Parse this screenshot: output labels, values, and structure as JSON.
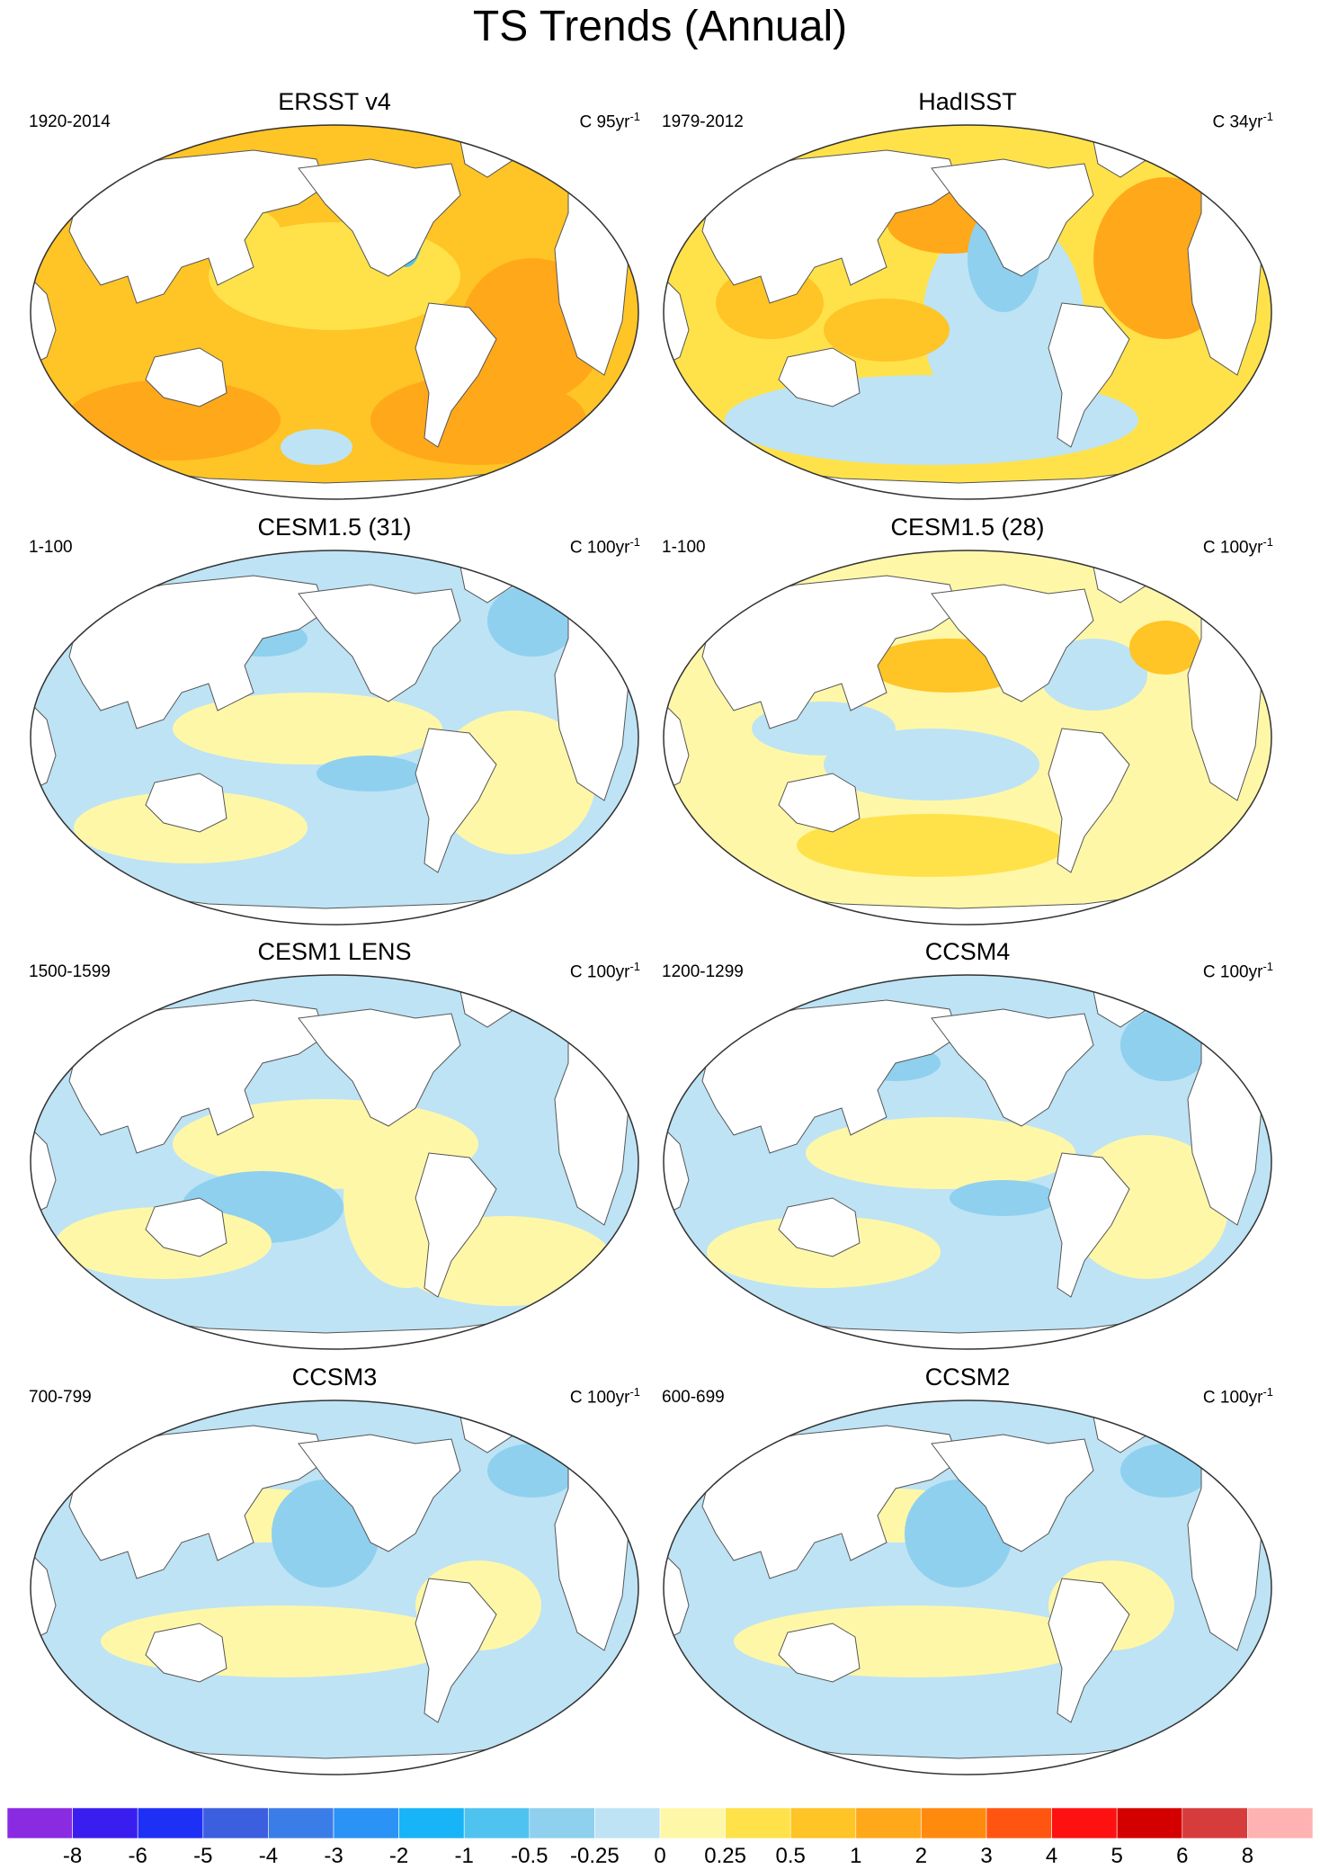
{
  "title": "TS Trends (Annual)",
  "panels": [
    {
      "title": "ERSST v4",
      "period": "1920-2014",
      "units_prefix": "C 95yr",
      "units_exp": "-1",
      "pattern": "warm-strong"
    },
    {
      "title": "HadISST",
      "period": "1979-2012",
      "units_prefix": "C 34yr",
      "units_exp": "-1",
      "pattern": "warm-mixed"
    },
    {
      "title": "CESM1.5 (31)",
      "period": "1-100",
      "units_prefix": "C 100yr",
      "units_exp": "-1",
      "pattern": "cool-mixed"
    },
    {
      "title": "CESM1.5 (28)",
      "period": "1-100",
      "units_prefix": "C 100yr",
      "units_exp": "-1",
      "pattern": "warm-weak"
    },
    {
      "title": "CESM1 LENS",
      "period": "1500-1599",
      "units_prefix": "C 100yr",
      "units_exp": "-1",
      "pattern": "mixed"
    },
    {
      "title": "CCSM4",
      "period": "1200-1299",
      "units_prefix": "C 100yr",
      "units_exp": "-1",
      "pattern": "cool-mixed"
    },
    {
      "title": "CCSM3",
      "period": "700-799",
      "units_prefix": "C 100yr",
      "units_exp": "-1",
      "pattern": "cool"
    },
    {
      "title": "CCSM2",
      "period": "600-699",
      "units_prefix": "C 100yr",
      "units_exp": "-1",
      "pattern": "cool"
    }
  ],
  "colorbar": {
    "colors": [
      "#8a2be2",
      "#3a1ef0",
      "#1e30f5",
      "#3c5fe0",
      "#3b7de8",
      "#2a93f5",
      "#17b4f7",
      "#4fc3f0",
      "#8fd0ee",
      "#bde3f5",
      "#fff7a8",
      "#ffe24a",
      "#ffc425",
      "#ffa81a",
      "#ff8a0e",
      "#ff5511",
      "#ff1111",
      "#d40000",
      "#d63c3c",
      "#ffb2b2"
    ],
    "labels": [
      "-8",
      "-6",
      "-5",
      "-4",
      "-3",
      "-2",
      "-1",
      "-0.5",
      "-0.25",
      "0",
      "0.25",
      "0.5",
      "1",
      "2",
      "3",
      "4",
      "5",
      "6",
      "8"
    ]
  },
  "colors": {
    "land": "#ffffff",
    "coast": "#555555",
    "cool_light": "#bde3f5",
    "cool_mid": "#8fd0ee",
    "cool_strong": "#4fc3f0",
    "warm_light": "#fff7a8",
    "warm_mid": "#ffe24a",
    "warm_strong": "#ffc425",
    "warm_deep": "#ffa81a"
  }
}
